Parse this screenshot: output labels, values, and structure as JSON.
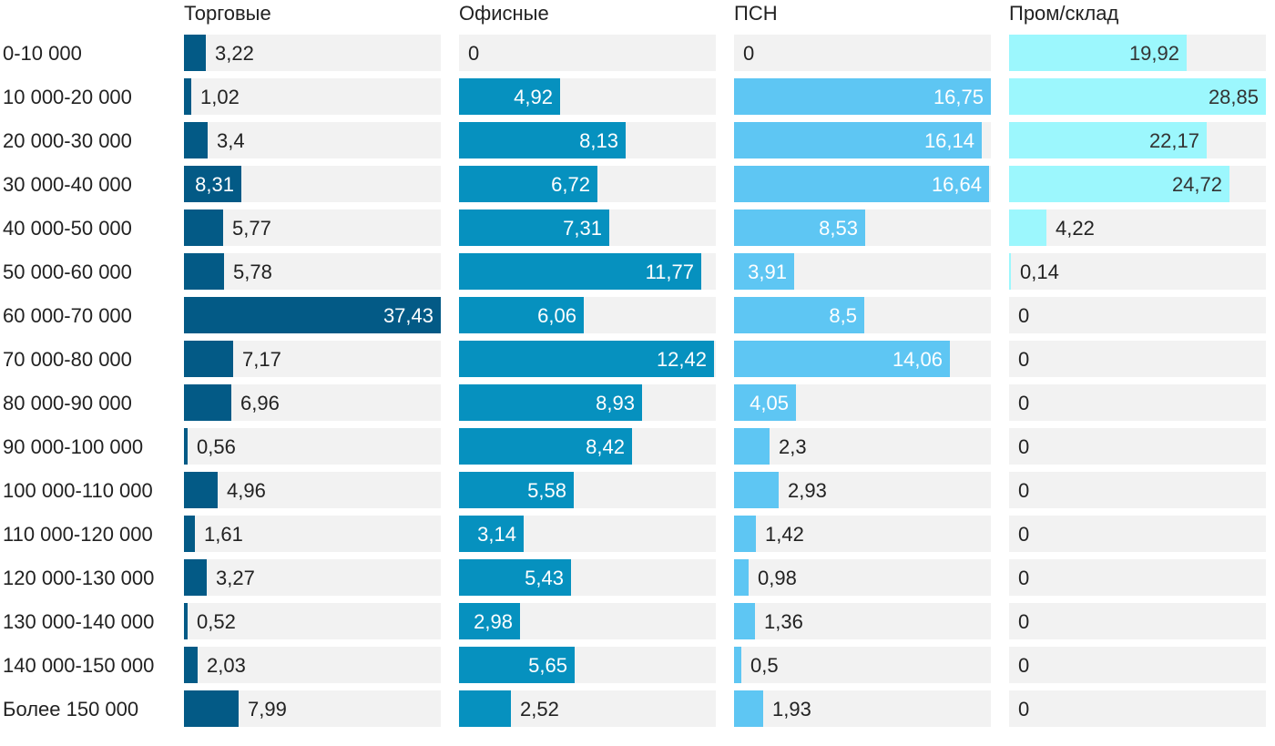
{
  "chart_data": {
    "type": "bar",
    "orientation": "horizontal",
    "layout": "small-multiples",
    "title": "",
    "categories": [
      "0-10 000",
      "10 000-20 000",
      "20 000-30 000",
      "30 000-40 000",
      "40 000-50 000",
      "50 000-60 000",
      "60 000-70 000",
      "70 000-80 000",
      "80 000-90 000",
      "90 000-100 000",
      "100 000-110 000",
      "110 000-120 000",
      "120 000-130 000",
      "130 000-140 000",
      "140 000-150 000",
      "Более 150 000"
    ],
    "series": [
      {
        "name": "Торговые",
        "color": "#035a86",
        "labels": [
          "3,22",
          "1,02",
          "3,4",
          "8,31",
          "5,77",
          "5,78",
          "37,43",
          "7,17",
          "6,96",
          "0,56",
          "4,96",
          "1,61",
          "3,27",
          "0,52",
          "2,03",
          "7,99"
        ],
        "values": [
          3.22,
          1.02,
          3.4,
          8.31,
          5.77,
          5.78,
          37.43,
          7.17,
          6.96,
          0.56,
          4.96,
          1.61,
          3.27,
          0.52,
          2.03,
          7.99
        ],
        "xlim": [
          0,
          37.43
        ]
      },
      {
        "name": "Офисные",
        "color": "#0691bf",
        "labels": [
          "0",
          "4,92",
          "8,13",
          "6,72",
          "7,31",
          "11,77",
          "6,06",
          "12,42",
          "8,93",
          "8,42",
          "5,58",
          "3,14",
          "5,43",
          "2,98",
          "5,65",
          "2,52"
        ],
        "values": [
          0,
          4.92,
          8.13,
          6.72,
          7.31,
          11.77,
          6.06,
          12.42,
          8.93,
          8.42,
          5.58,
          3.14,
          5.43,
          2.98,
          5.65,
          2.52
        ],
        "xlim": [
          0,
          12.5
        ]
      },
      {
        "name": "ПСН",
        "color": "#5ec6f3",
        "labels": [
          "0",
          "16,75",
          "16,14",
          "16,64",
          "8,53",
          "3,91",
          "8,5",
          "14,06",
          "4,05",
          "2,3",
          "2,93",
          "1,42",
          "0,98",
          "1,36",
          "0,5",
          "1,93"
        ],
        "values": [
          0,
          16.75,
          16.14,
          16.64,
          8.53,
          3.91,
          8.5,
          14.06,
          4.05,
          2.3,
          2.93,
          1.42,
          0.98,
          1.36,
          0.5,
          1.93
        ],
        "xlim": [
          0,
          16.75
        ]
      },
      {
        "name": "Пром/склад",
        "color": "#9cf7fd",
        "labels": [
          "19,92",
          "28,85",
          "22,17",
          "24,72",
          "4,22",
          "0,14",
          "0",
          "0",
          "0",
          "0",
          "0",
          "0",
          "0",
          "0",
          "0",
          "0"
        ],
        "values": [
          19.92,
          28.85,
          22.17,
          24.72,
          4.22,
          0.14,
          0,
          0,
          0,
          0,
          0,
          0,
          0,
          0,
          0,
          0
        ],
        "xlim": [
          0,
          28.85
        ]
      }
    ],
    "track_color": "#f2f2f2",
    "inside_label_color": "#ffffff",
    "inside_label_color_light_bars": "#333333",
    "outside_label_color": "#222222",
    "category_label_color": "#222222"
  }
}
